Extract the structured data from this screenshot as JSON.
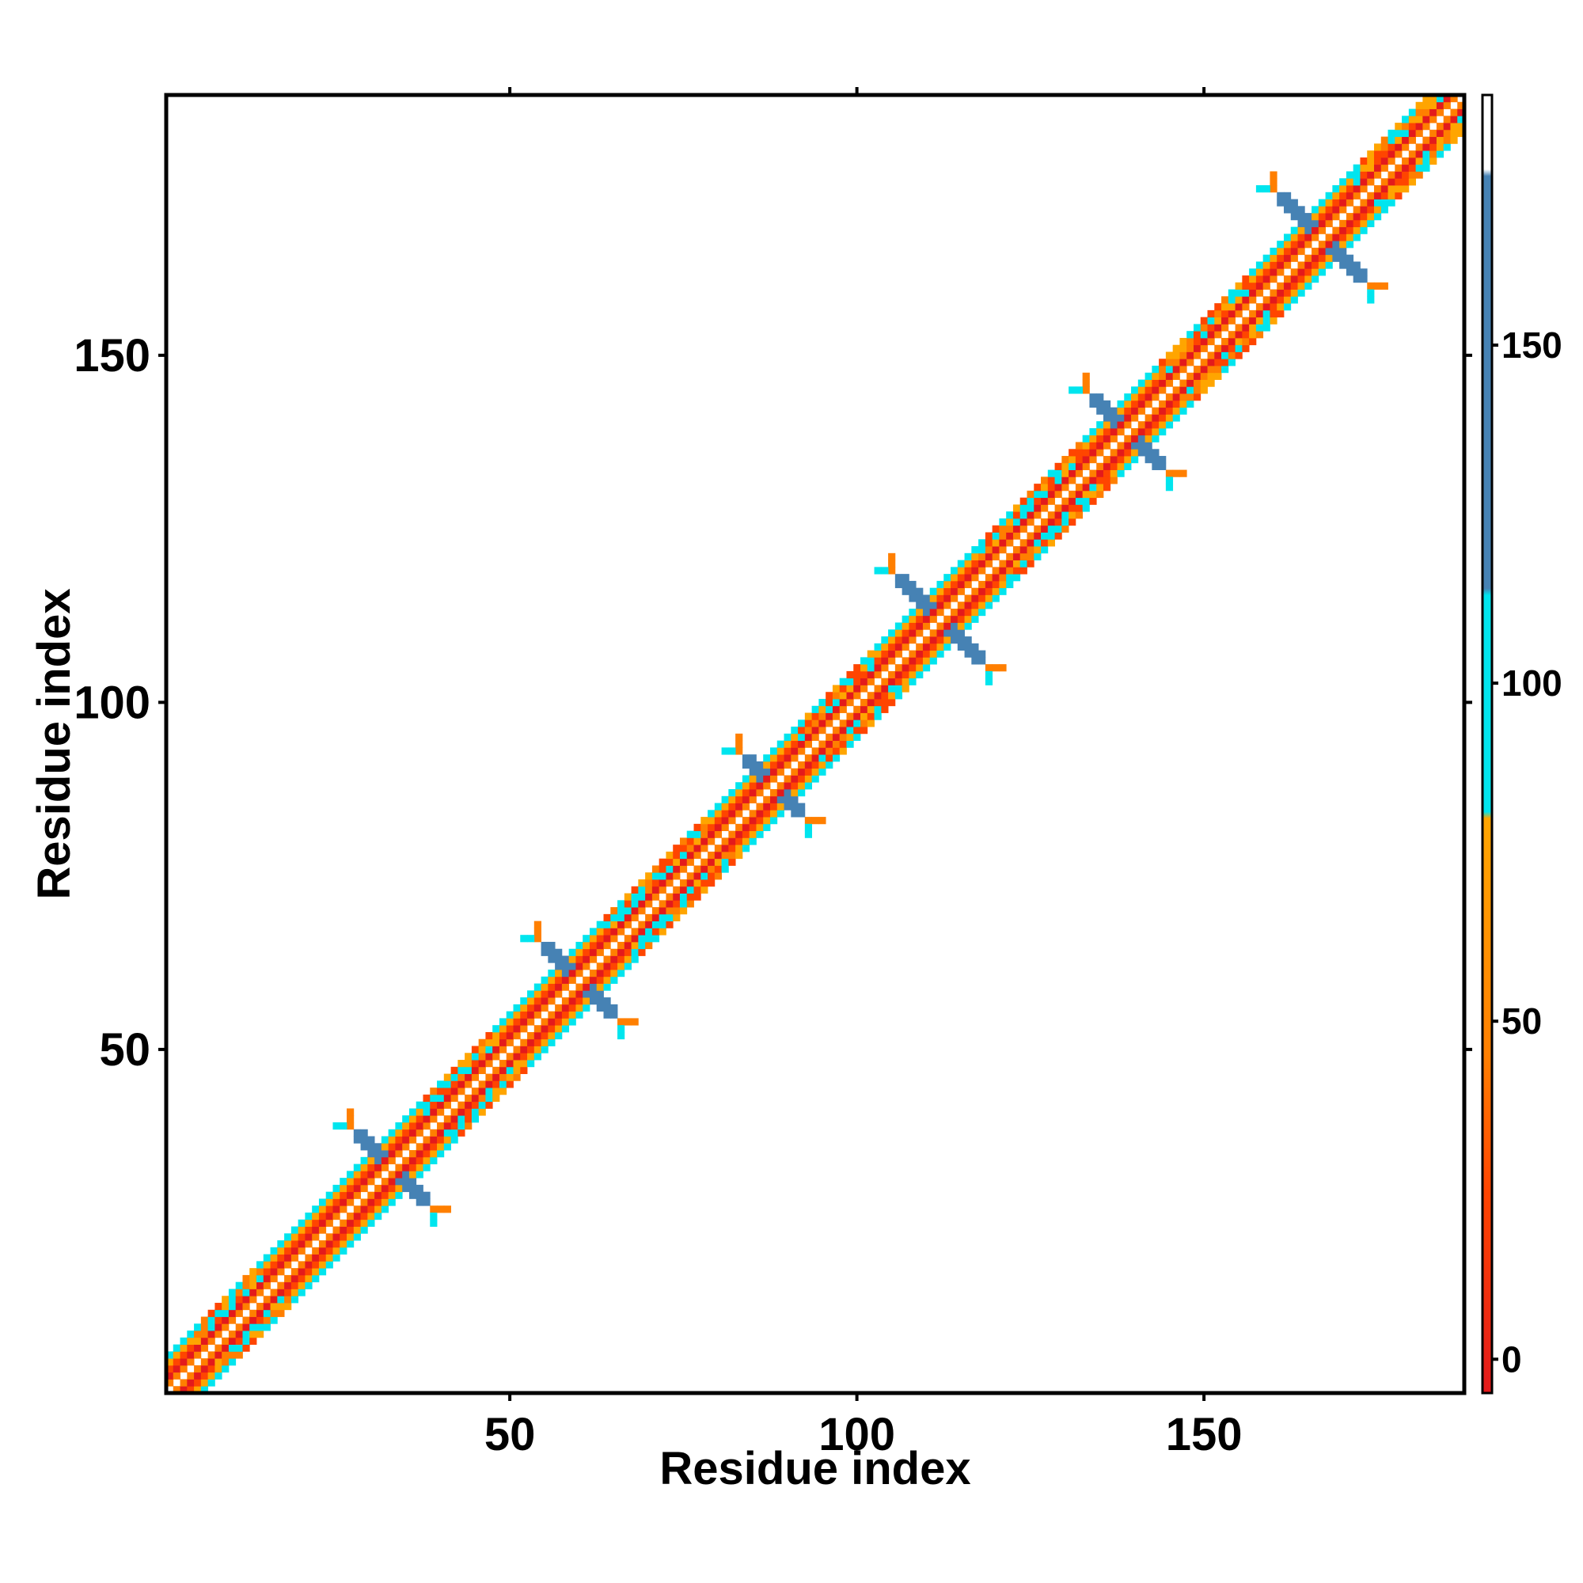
{
  "chart_data": {
    "type": "heatmap",
    "title": "",
    "xlabel": "Residue index",
    "ylabel": "Residue index",
    "xlim": [
      1,
      187
    ],
    "ylim": [
      1,
      187
    ],
    "x_ticks": [
      50,
      100,
      150
    ],
    "y_ticks": [
      50,
      100,
      150
    ],
    "colorbar": {
      "range": [
        -5,
        187
      ],
      "ticks": [
        0,
        50,
        100,
        150
      ],
      "stops": [
        {
          "value": -5,
          "color": "#e31a1c"
        },
        {
          "value": 25,
          "color": "#ff4500"
        },
        {
          "value": 45,
          "color": "#ff7f00"
        },
        {
          "value": 80,
          "color": "#ffa500"
        },
        {
          "value": 81,
          "color": "#00e5ee"
        },
        {
          "value": 113,
          "color": "#00e5ee"
        },
        {
          "value": 114,
          "color": "#4682b4"
        },
        {
          "value": 175,
          "color": "#4682b4"
        },
        {
          "value": 176,
          "color": "#ffffff"
        },
        {
          "value": 187,
          "color": "#ffffff"
        }
      ]
    },
    "palette": {
      "red": "#e31a1c",
      "orange_red": "#ff4500",
      "orange": "#ff7f00",
      "amber": "#ffa500",
      "cyan": "#00e5ee",
      "steel_blue": "#4682b4"
    },
    "diagonal_band": {
      "from": 1,
      "to": 187,
      "near_diagonal_offsets": {
        "1": "orange",
        "2": "red",
        "3": "orange_red",
        "4": "amber",
        "5": "cyan"
      }
    },
    "cross_features": [
      {
        "center": 33,
        "arm": 5,
        "color": "steel_blue"
      },
      {
        "center": 60,
        "arm": 5,
        "color": "steel_blue"
      },
      {
        "center": 88,
        "arm": 4,
        "color": "steel_blue"
      },
      {
        "center": 112,
        "arm": 6,
        "color": "steel_blue"
      },
      {
        "center": 139,
        "arm": 5,
        "color": "steel_blue"
      },
      {
        "center": 167,
        "arm": 6,
        "color": "steel_blue"
      }
    ],
    "helix_segments": [
      {
        "start": 5,
        "end": 14
      },
      {
        "start": 38,
        "end": 48
      },
      {
        "start": 64,
        "end": 78
      },
      {
        "start": 92,
        "end": 102
      },
      {
        "start": 118,
        "end": 132
      },
      {
        "start": 144,
        "end": 156
      },
      {
        "start": 172,
        "end": 187
      }
    ],
    "grid": false,
    "legend": "colorbar-right"
  }
}
